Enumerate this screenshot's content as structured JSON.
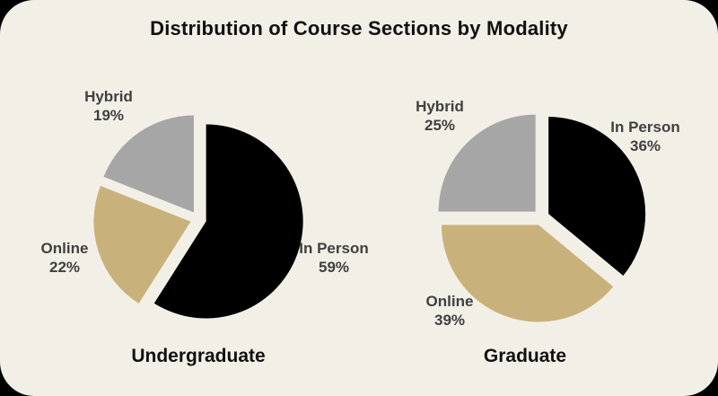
{
  "page": {
    "title": "Distribution of Course Sections by Modality"
  },
  "colors": {
    "canvas_background": "#F2EFE6",
    "outside_corners": "#000000",
    "title_text": "#111111",
    "label_text": "#404040",
    "in_person": "#000000",
    "online": "#C9B17C",
    "hybrid": "#A6A6A6"
  },
  "chart_data": [
    {
      "type": "pie",
      "title": "Undergraduate",
      "start_angle_deg": 0,
      "direction": "clockwise",
      "exploded": true,
      "slices": [
        {
          "label": "In Person",
          "value": 59,
          "pct_label": "59%",
          "color": "#000000"
        },
        {
          "label": "Online",
          "value": 22,
          "pct_label": "22%",
          "color": "#C9B17C"
        },
        {
          "label": "Hybrid",
          "value": 19,
          "pct_label": "19%",
          "color": "#A6A6A6"
        }
      ]
    },
    {
      "type": "pie",
      "title": "Graduate",
      "start_angle_deg": 0,
      "direction": "clockwise",
      "exploded": true,
      "slices": [
        {
          "label": "In Person",
          "value": 36,
          "pct_label": "36%",
          "color": "#000000"
        },
        {
          "label": "Online",
          "value": 39,
          "pct_label": "39%",
          "color": "#C9B17C"
        },
        {
          "label": "Hybrid",
          "value": 25,
          "pct_label": "25%",
          "color": "#A6A6A6"
        }
      ]
    }
  ]
}
